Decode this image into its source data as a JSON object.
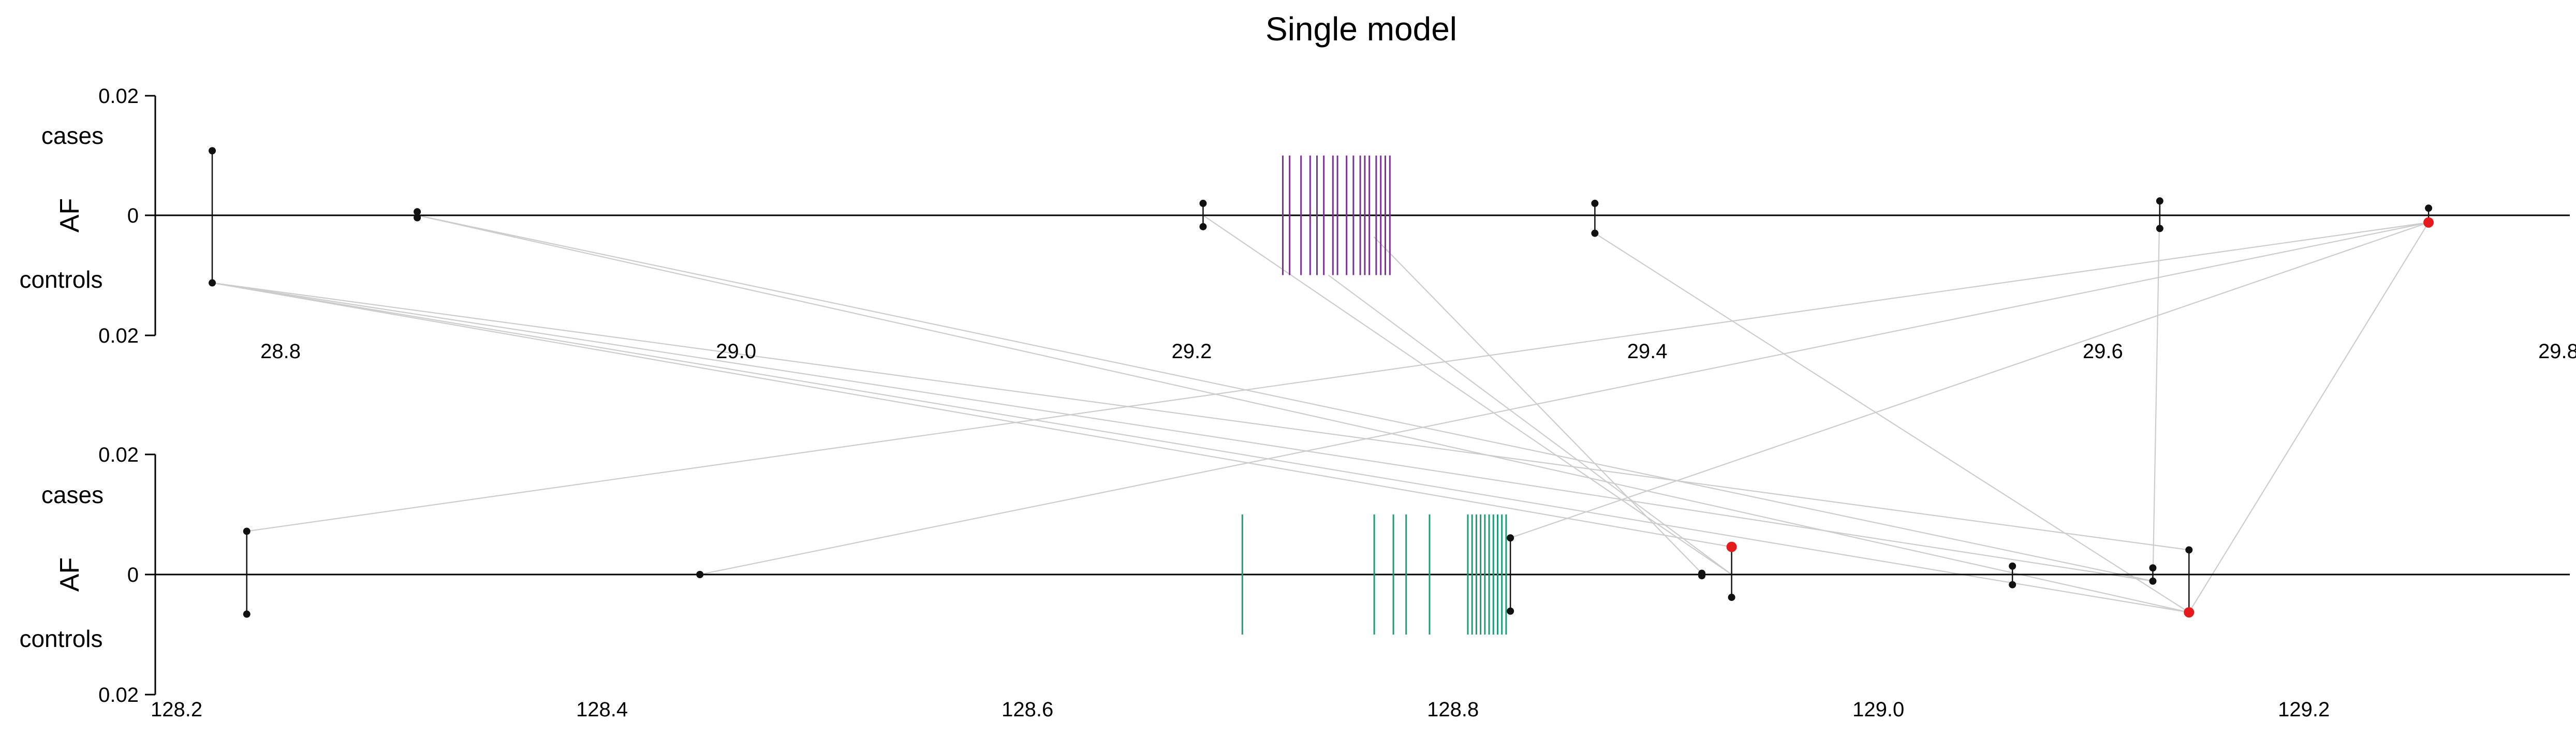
{
  "chart_data": {
    "type": "scatter",
    "title": "Single model",
    "colors": {
      "points": "#111111",
      "highlight": "#e41a1c",
      "link": "#cccccc",
      "baseline": "#000000",
      "purple": "#7b3294",
      "green": "#1b9e77"
    },
    "panels": [
      {
        "id": "top",
        "ylabel": "AF",
        "case_label": "cases",
        "control_label": "controls",
        "ytick_top": "0.02",
        "ytick_zero": "0",
        "ytick_bottom": "0.02",
        "xlim": [
          28.745,
          29.805
        ],
        "xticks": [
          "28.8",
          "29.0",
          "29.2",
          "29.4",
          "29.6",
          "29.8"
        ],
        "xtick_values": [
          28.8,
          29.0,
          29.2,
          29.4,
          29.6,
          29.8
        ],
        "variants": [
          {
            "x": 28.77,
            "case": 0.0108,
            "control": 0.0113
          },
          {
            "x": 28.86,
            "case": 0.0006,
            "control": 0.0004
          },
          {
            "x": 29.205,
            "case": 0.002,
            "control": 0.0019
          },
          {
            "x": 29.377,
            "case": 0.002,
            "control": 0.003
          },
          {
            "x": 29.625,
            "case": 0.0024,
            "control": 0.0022
          },
          {
            "x": 29.743,
            "case": 0.0012,
            "control": 0.0012,
            "highlight": "control"
          }
        ],
        "gene_color": "purple",
        "gene_ticks": [
          29.24,
          29.243,
          29.248,
          29.252,
          29.255,
          29.258,
          29.262,
          29.264,
          29.268,
          29.271,
          29.274,
          29.276,
          29.278,
          29.281,
          29.283,
          29.285,
          29.287
        ]
      },
      {
        "id": "bottom",
        "ylabel": "AF",
        "case_label": "cases",
        "control_label": "controls",
        "ytick_top": "0.02",
        "ytick_zero": "0",
        "ytick_bottom": "0.02",
        "xlim": [
          128.19,
          129.325
        ],
        "xticks": [
          "128.2",
          "128.4",
          "128.6",
          "128.8",
          "129.0",
          "129.2"
        ],
        "xtick_values": [
          128.2,
          128.4,
          128.6,
          128.8,
          129.0,
          129.2
        ],
        "variants": [
          {
            "x": 128.233,
            "case": 0.0072,
            "control": 0.0066
          },
          {
            "x": 128.446,
            "case": 0.0,
            "control": 0.0
          },
          {
            "x": 128.827,
            "case": 0.0061,
            "control": 0.0061
          },
          {
            "x": 128.917,
            "case": 0.0002,
            "control": 0.0002
          },
          {
            "x": 128.931,
            "case": 0.0046,
            "control": 0.0038,
            "highlight": "case"
          },
          {
            "x": 129.063,
            "case": 0.0014,
            "control": 0.0017
          },
          {
            "x": 129.129,
            "case": 0.0011,
            "control": 0.0011
          },
          {
            "x": 129.146,
            "case": 0.0041,
            "control": 0.0063,
            "highlight": "control"
          }
        ],
        "gene_color": "green",
        "gene_ticks": [
          128.701,
          128.763,
          128.772,
          128.778,
          128.789,
          128.807,
          128.809,
          128.811,
          128.813,
          128.815,
          128.817,
          128.819,
          128.821,
          128.823,
          128.825
        ]
      }
    ],
    "links": [
      {
        "from": {
          "panel": 0,
          "x": 28.77,
          "y": -0.0113
        },
        "to": {
          "panel": 1,
          "x": 129.129,
          "y": -0.0011
        }
      },
      {
        "from": {
          "panel": 0,
          "x": 28.77,
          "y": -0.0113
        },
        "to": {
          "panel": 1,
          "x": 129.146,
          "y": -0.0063
        }
      },
      {
        "from": {
          "panel": 0,
          "x": 28.77,
          "y": -0.0113
        },
        "to": {
          "panel": 1,
          "x": 129.146,
          "y": 0.0041
        }
      },
      {
        "from": {
          "panel": 0,
          "x": 28.77,
          "y": -0.0113
        },
        "to": {
          "panel": 1,
          "x": 128.931,
          "y": 0.0046
        }
      },
      {
        "from": {
          "panel": 0,
          "x": 28.86,
          "y": 0.0
        },
        "to": {
          "panel": 1,
          "x": 129.146,
          "y": -0.0063
        }
      },
      {
        "from": {
          "panel": 0,
          "x": 28.86,
          "y": 0.0
        },
        "to": {
          "panel": 1,
          "x": 129.129,
          "y": -0.0011
        }
      },
      {
        "from": {
          "panel": 0,
          "x": 29.205,
          "y": 0.0
        },
        "to": {
          "panel": 1,
          "x": 128.931,
          "y": 0.0
        }
      },
      {
        "from": {
          "panel": 0,
          "x": 29.26,
          "y": -0.01
        },
        "to": {
          "panel": 1,
          "x": 128.931,
          "y": 0.0
        }
      },
      {
        "from": {
          "panel": 0,
          "x": 29.377,
          "y": -0.003
        },
        "to": {
          "panel": 1,
          "x": 129.146,
          "y": -0.0063
        }
      },
      {
        "from": {
          "panel": 0,
          "x": 29.28,
          "y": -0.0036
        },
        "to": {
          "panel": 1,
          "x": 128.917,
          "y": 0.0002
        }
      },
      {
        "from": {
          "panel": 0,
          "x": 29.625,
          "y": 0.0024
        },
        "to": {
          "panel": 1,
          "x": 129.129,
          "y": -0.0011
        }
      },
      {
        "from": {
          "panel": 0,
          "x": 29.743,
          "y": -0.0012
        },
        "to": {
          "panel": 1,
          "x": 128.233,
          "y": 0.0072
        }
      },
      {
        "from": {
          "panel": 0,
          "x": 29.743,
          "y": -0.0012
        },
        "to": {
          "panel": 1,
          "x": 128.446,
          "y": 0.0
        }
      },
      {
        "from": {
          "panel": 0,
          "x": 29.743,
          "y": -0.0012
        },
        "to": {
          "panel": 1,
          "x": 128.827,
          "y": 0.0061
        }
      },
      {
        "from": {
          "panel": 0,
          "x": 29.743,
          "y": -0.0012
        },
        "to": {
          "panel": 1,
          "x": 129.146,
          "y": -0.0063
        }
      }
    ]
  }
}
